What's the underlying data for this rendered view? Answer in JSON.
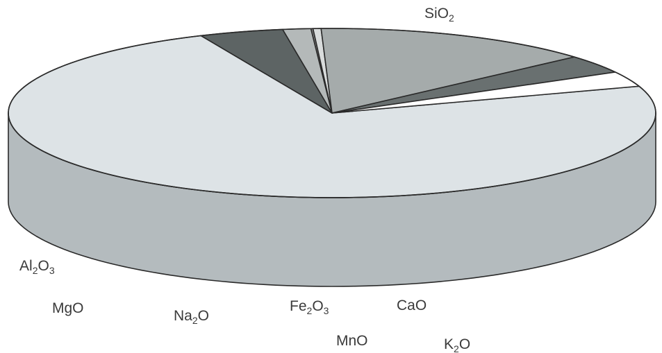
{
  "chart_data": {
    "type": "pie",
    "title": "",
    "style": "3d-oblique",
    "slices": [
      {
        "label": "SiO2",
        "base": "SiO",
        "sub": "2",
        "value": 73.5,
        "color": "#dde3e6",
        "side": "#b4bbbe"
      },
      {
        "label": "K2O",
        "base": "K",
        "sub": "2",
        "after": "O",
        "value": 4.2,
        "color": "#5d6464",
        "side": "#3d4545"
      },
      {
        "label": "CaO",
        "base": "CaO",
        "value": 1.4,
        "color": "#b4b9b9",
        "side": "#8a9090"
      },
      {
        "label": "MnO",
        "base": "MnO",
        "value": 0.1,
        "color": "#8a8a8a",
        "side": "#6d6d6d"
      },
      {
        "label": "Fe2O3",
        "base": "Fe",
        "sub": "2",
        "after": "O",
        "sub2": "3",
        "value": 0.4,
        "color": "#d9dcdc",
        "side": "#c9cccc"
      },
      {
        "label": "Na2O",
        "base": "Na",
        "sub": "2",
        "after": "O",
        "value": 14.0,
        "color": "#a5abab",
        "side": "#8a9191"
      },
      {
        "label": "MgO",
        "base": "MgO",
        "value": 3.5,
        "color": "#697070",
        "side": "#555c5c"
      },
      {
        "label": "Al2O3",
        "base": "Al",
        "sub": "2",
        "after": "O",
        "sub2": "3",
        "value": 2.9,
        "color": "#ffffff",
        "side": "#cfd4d4"
      }
    ]
  }
}
